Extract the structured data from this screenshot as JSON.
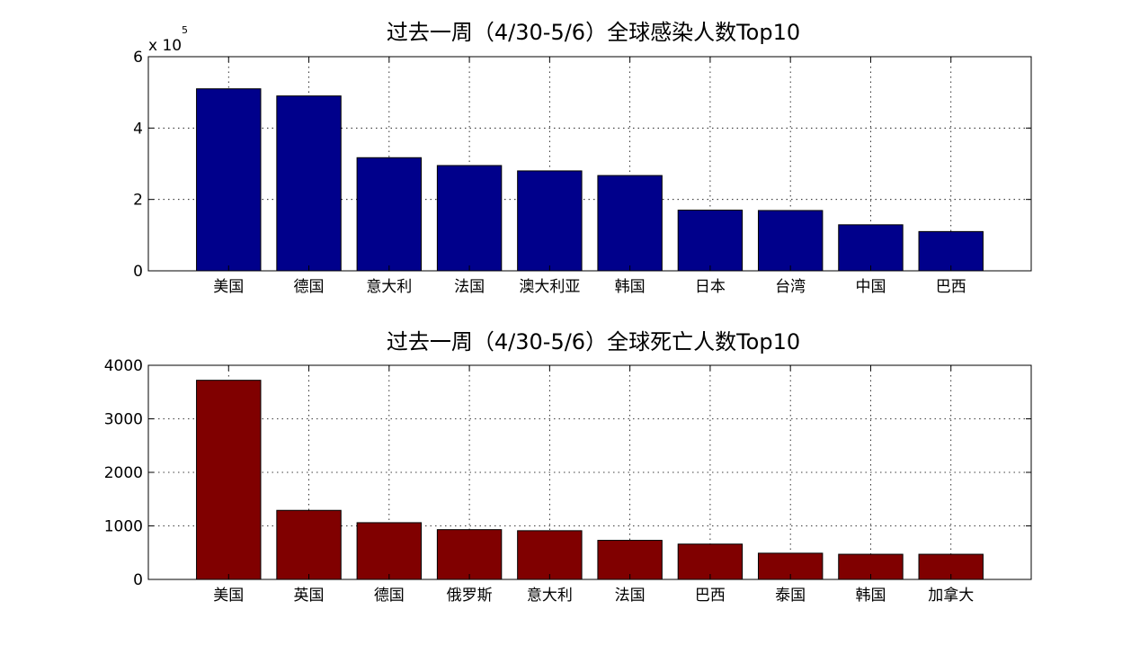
{
  "chart_data": [
    {
      "type": "bar",
      "title": "过去一周（4/30-5/6）全球感染人数Top10",
      "categories": [
        "美国",
        "德国",
        "意大利",
        "法国",
        "澳大利亚",
        "韩国",
        "日本",
        "台湾",
        "中国",
        "巴西"
      ],
      "values": [
        510000,
        490000,
        317000,
        295000,
        280000,
        267000,
        170000,
        169000,
        129000,
        110000
      ],
      "ylim": [
        0,
        600000
      ],
      "yticks": [
        0,
        200000,
        400000,
        600000
      ],
      "ytick_labels": [
        "0",
        "2",
        "4",
        "6"
      ],
      "y_multiplier_prefix": "x 10",
      "y_multiplier_exponent": "5",
      "bar_color": "#00008b",
      "grid": true,
      "xlabel": "",
      "ylabel": ""
    },
    {
      "type": "bar",
      "title": "过去一周（4/30-5/6）全球死亡人数Top10",
      "categories": [
        "美国",
        "英国",
        "德国",
        "俄罗斯",
        "意大利",
        "法国",
        "巴西",
        "泰国",
        "韩国",
        "加拿大"
      ],
      "values": [
        3720,
        1290,
        1060,
        930,
        910,
        730,
        660,
        490,
        470,
        470
      ],
      "ylim": [
        0,
        4000
      ],
      "yticks": [
        0,
        1000,
        2000,
        3000,
        4000
      ],
      "ytick_labels": [
        "0",
        "1000",
        "2000",
        "3000",
        "4000"
      ],
      "bar_color": "#800000",
      "grid": true,
      "xlabel": "",
      "ylabel": ""
    }
  ]
}
